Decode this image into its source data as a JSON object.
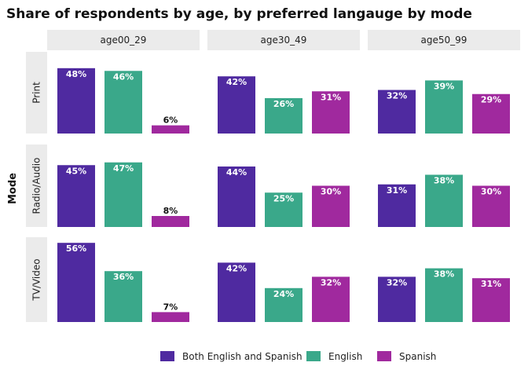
{
  "chart_data": {
    "type": "bar",
    "title": "Share of respondents by age, by preferred langauge by mode",
    "ylabel": "Mode",
    "col_facets": [
      "age00_29",
      "age30_49",
      "age50_99"
    ],
    "row_facets": [
      "Print",
      "Radio/Audio",
      "TV/Video"
    ],
    "categories": [
      "Both English and Spanish",
      "English",
      "Spanish"
    ],
    "colors": [
      "#4f2aa0",
      "#3aa88a",
      "#a0299e"
    ],
    "ylim": [
      0,
      60
    ],
    "values": [
      [
        [
          48,
          46,
          6
        ],
        [
          42,
          26,
          31
        ],
        [
          32,
          39,
          29
        ]
      ],
      [
        [
          45,
          47,
          8
        ],
        [
          44,
          25,
          30
        ],
        [
          31,
          38,
          30
        ]
      ],
      [
        [
          56,
          36,
          7
        ],
        [
          42,
          24,
          32
        ],
        [
          32,
          38,
          31
        ]
      ]
    ],
    "legend_position": "bottom",
    "grid": false
  }
}
